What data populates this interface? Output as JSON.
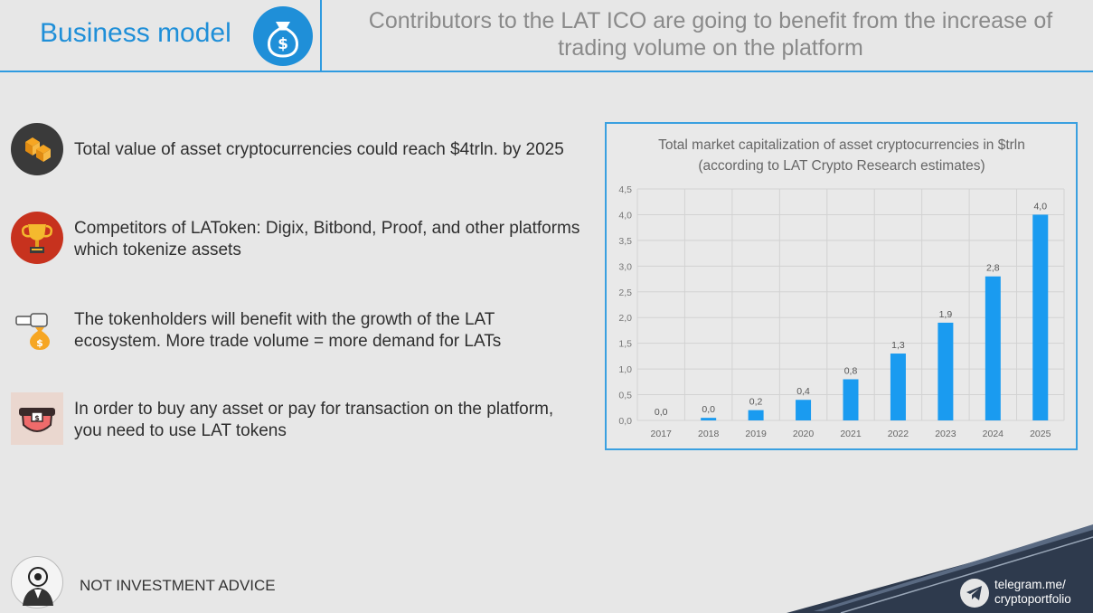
{
  "header": {
    "title": "Business model",
    "subtitle": "Contributors to the LAT ICO are going to benefit from the increase of trading volume on the platform",
    "icon": "money-bag-icon"
  },
  "bullets": [
    {
      "icon": "boxes-icon",
      "text": "Total value of asset cryptocurrencies could reach $4trln. by 2025"
    },
    {
      "icon": "trophy-icon",
      "text": "Competitors of LAToken: Digix, Bitbond, Proof, and other platforms which tokenize assets"
    },
    {
      "icon": "hand-money-bag-icon",
      "text": "The tokenholders will benefit with the growth of the LAT ecosystem. More trade volume = more demand for LATs"
    },
    {
      "icon": "wallet-icon",
      "text": "In order to buy any asset or pay for transaction on the platform, you need to use LAT tokens"
    }
  ],
  "chart_data": {
    "type": "bar",
    "title": "Total market capitalization of asset cryptocurrencies in $trln (according to LAT Crypto Research estimates)",
    "categories": [
      "2017",
      "2018",
      "2019",
      "2020",
      "2021",
      "2022",
      "2023",
      "2024",
      "2025"
    ],
    "values": [
      0.0,
      0.05,
      0.2,
      0.4,
      0.8,
      1.3,
      1.9,
      2.8,
      4.0
    ],
    "data_labels": [
      "0,0",
      "0,0",
      "0,2",
      "0,4",
      "0,8",
      "1,3",
      "1,9",
      "2,8",
      "4,0"
    ],
    "y_ticks": [
      "0,0",
      "0,5",
      "1,0",
      "1,5",
      "2,0",
      "2,5",
      "3,0",
      "3,5",
      "4,0",
      "4,5"
    ],
    "ylim": [
      0,
      4.5
    ],
    "grid": true,
    "bar_color": "#1a9bf0",
    "xlabel": "",
    "ylabel": ""
  },
  "footer": {
    "disclaimer": "NOT INVESTMENT ADVICE",
    "telegram_line1": "telegram.me/",
    "telegram_line2": "cryptoportfolio"
  },
  "colors": {
    "accent": "#1f8fd8",
    "background": "#e7e7e7",
    "footer_band": "#2e3a4d"
  }
}
